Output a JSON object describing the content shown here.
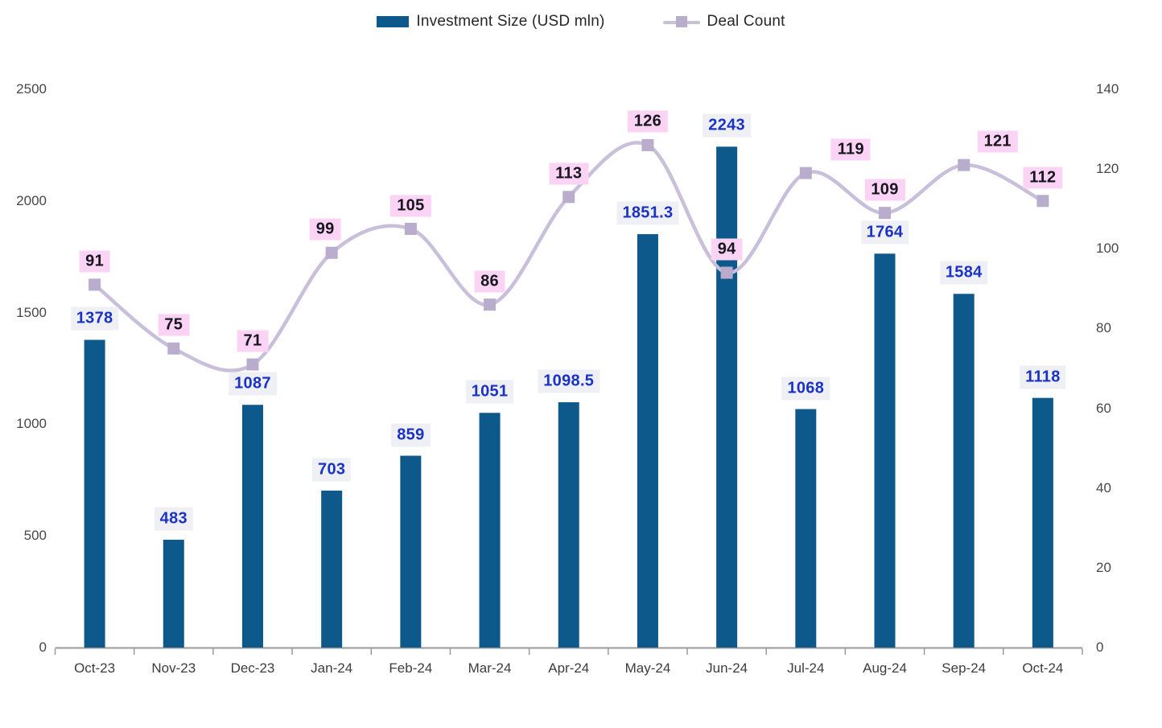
{
  "legend": {
    "investment_label": "Investment Size (USD mln)",
    "deal_label": "Deal Count"
  },
  "colors": {
    "bar": "#0E598B",
    "line": "#C9BFDA",
    "marker": "#B9ACCD",
    "deal_label_bg": "#FBD3F5",
    "deal_label_text": "#16161F",
    "bar_label_bg": "#EFEFF6",
    "bar_label_text": "#1B33C5",
    "axis_line": "#9A9A9A"
  },
  "chart_data": {
    "type": "bar+line combo",
    "categories": [
      "Oct-23",
      "Nov-23",
      "Dec-23",
      "Jan-24",
      "Feb-24",
      "Mar-24",
      "Apr-24",
      "May-24",
      "Jun-24",
      "Jul-24",
      "Aug-24",
      "Sep-24",
      "Oct-24"
    ],
    "series": [
      {
        "name": "Investment Size (USD mln)",
        "type": "bar",
        "axis": "left",
        "values": [
          1378,
          483,
          1087,
          703,
          859,
          1051,
          1098.5,
          1851.3,
          2243,
          1068,
          1764,
          1584,
          1118
        ]
      },
      {
        "name": "Deal Count",
        "type": "line",
        "axis": "right",
        "values": [
          91,
          75,
          71,
          99,
          105,
          86,
          113,
          126,
          94,
          119,
          109,
          121,
          112
        ]
      }
    ],
    "left_axis": {
      "min": 0,
      "max": 2500,
      "ticks": [
        0,
        500,
        1000,
        1500,
        2000,
        2500
      ]
    },
    "right_axis": {
      "min": 0,
      "max": 140,
      "ticks": [
        0,
        20,
        40,
        60,
        80,
        100,
        120,
        140
      ]
    },
    "grid": false,
    "legend_position": "top",
    "line_smooth": true,
    "deal_label_dx": [
      0,
      0,
      0,
      -8,
      0,
      0,
      0,
      0,
      0,
      56,
      0,
      42,
      0
    ]
  }
}
